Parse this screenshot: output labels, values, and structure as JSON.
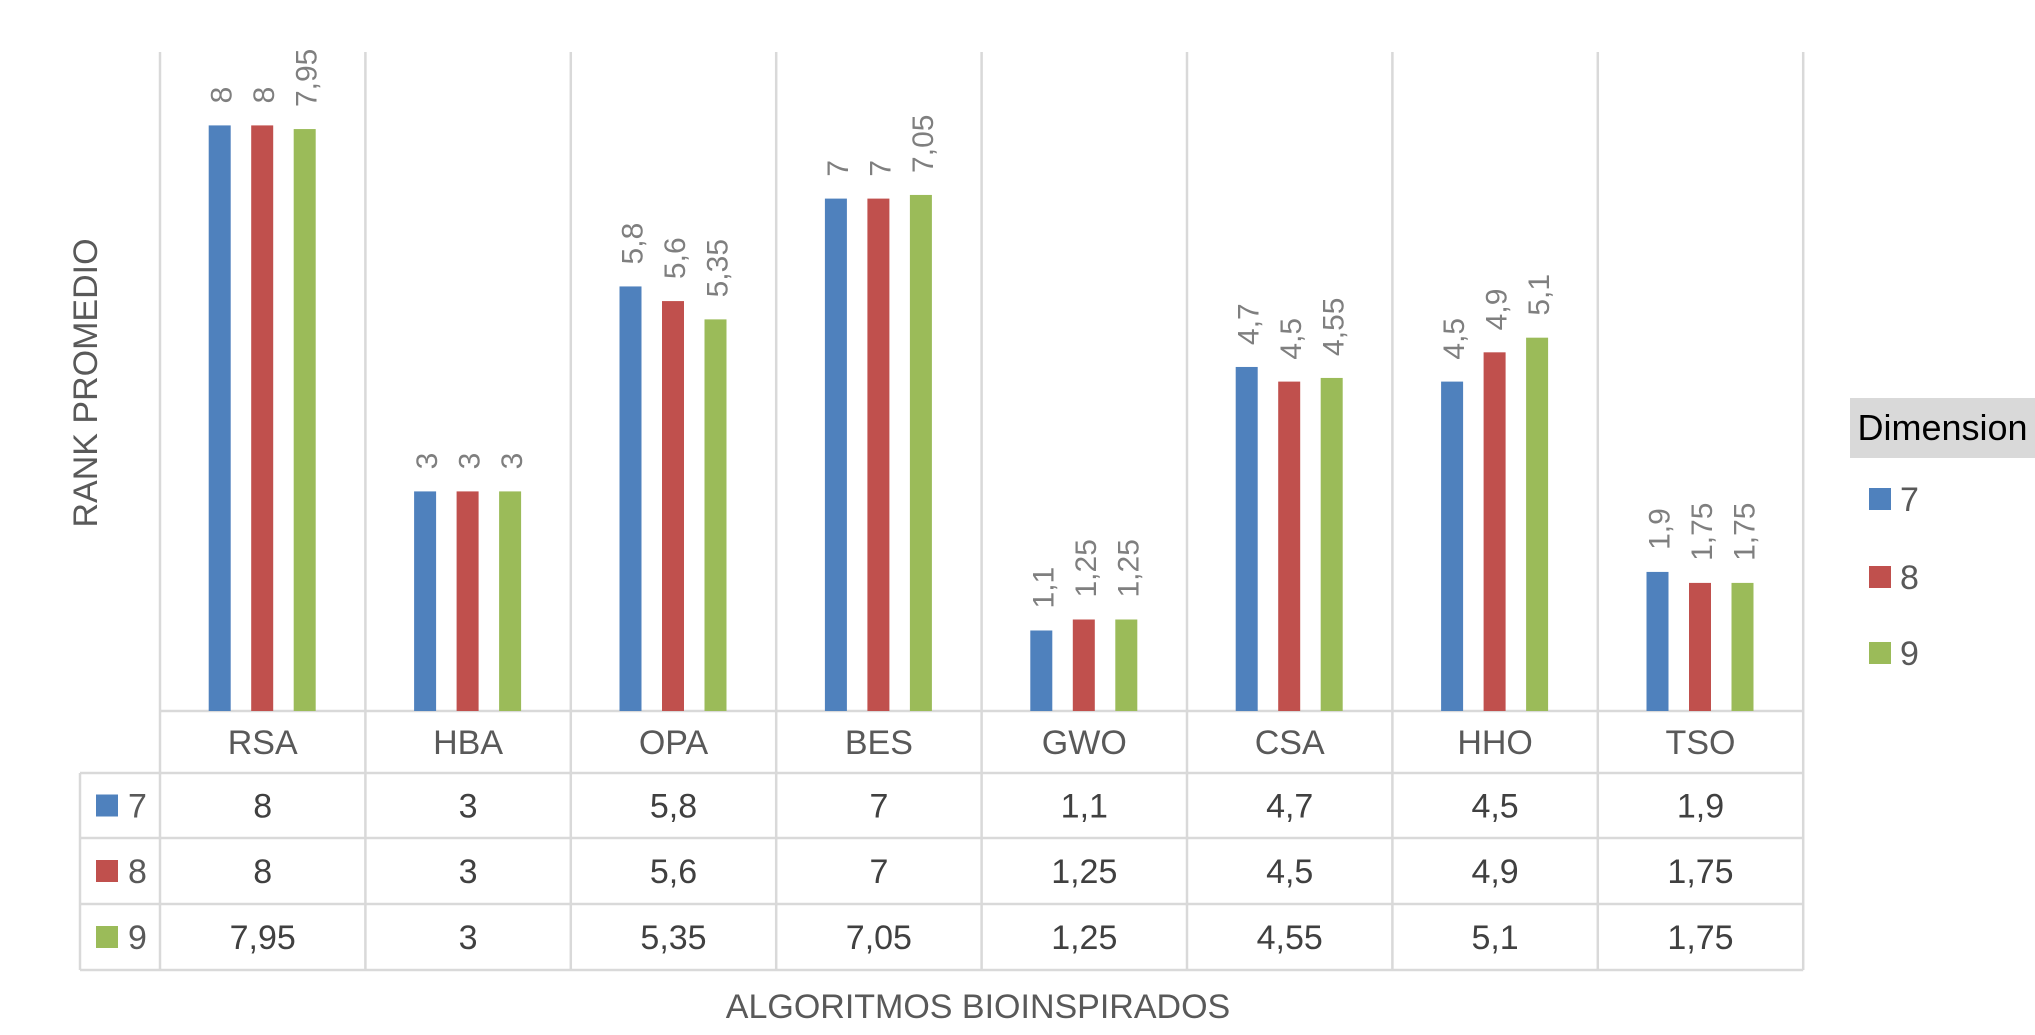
{
  "chart_data": {
    "type": "bar",
    "categories": [
      "RSA",
      "HBA",
      "OPA",
      "BES",
      "GWO",
      "CSA",
      "HHO",
      "TSO"
    ],
    "series": [
      {
        "name": "7",
        "values": [
          8,
          3,
          5.8,
          7,
          1.1,
          4.7,
          4.5,
          1.9
        ]
      },
      {
        "name": "8",
        "values": [
          8,
          3,
          5.6,
          7,
          1.25,
          4.5,
          4.9,
          1.75
        ]
      },
      {
        "name": "9",
        "values": [
          7.95,
          3,
          5.35,
          7.05,
          1.25,
          4.55,
          5.1,
          1.75
        ]
      }
    ],
    "series_colors": [
      "#4f81bd",
      "#c0504d",
      "#9bbb59"
    ],
    "xlabel": "ALGORITMOS BIOINSPIRADOS",
    "ylabel": "RANK PROMEDIO",
    "ylim": [
      0,
      9
    ],
    "legend_title": "Dimension",
    "legend_position": "right",
    "data_table": true,
    "decimal_separator": ","
  }
}
